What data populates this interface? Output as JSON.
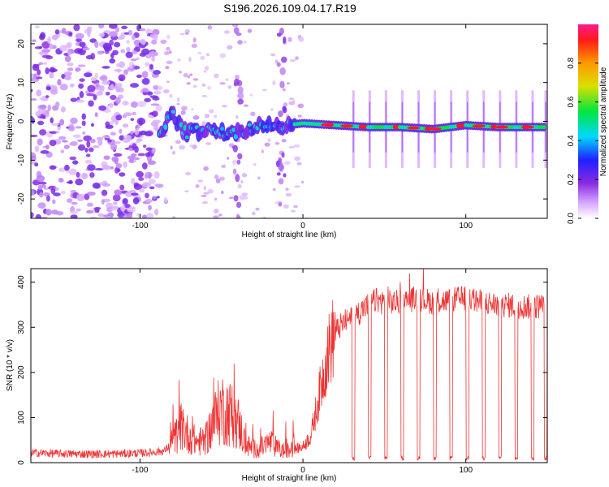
{
  "page_title": "S196.2026.109.04.17.R19",
  "chart_data": [
    {
      "type": "heatmap",
      "xlabel": "Height of straight line (km)",
      "ylabel": "Frequency (Hz)",
      "xlim": [
        -167,
        150
      ],
      "ylim": [
        -25,
        25
      ],
      "xticks": [
        -100,
        0,
        100
      ],
      "xtick_labels": [
        "-100",
        "0",
        "100"
      ],
      "yticks": [
        -20,
        -10,
        0,
        10,
        20
      ],
      "ytick_labels": [
        "-20",
        "-10",
        "0",
        "10",
        "20"
      ],
      "signal_track": [
        {
          "x": -88,
          "y": -4
        },
        {
          "x": -84,
          "y": 0
        },
        {
          "x": -80,
          "y": 2
        },
        {
          "x": -76,
          "y": -1
        },
        {
          "x": -72,
          "y": -3
        },
        {
          "x": -66,
          "y": -2
        },
        {
          "x": -60,
          "y": -3
        },
        {
          "x": -54,
          "y": -2
        },
        {
          "x": -48,
          "y": -3
        },
        {
          "x": -40,
          "y": -3
        },
        {
          "x": -32,
          "y": -2
        },
        {
          "x": -26,
          "y": 0
        },
        {
          "x": -20,
          "y": -1
        },
        {
          "x": -10,
          "y": -1
        },
        {
          "x": 0,
          "y": -0.5
        },
        {
          "x": 20,
          "y": -1
        },
        {
          "x": 40,
          "y": -1.5
        },
        {
          "x": 60,
          "y": -1.5
        },
        {
          "x": 80,
          "y": -2
        },
        {
          "x": 100,
          "y": -1
        },
        {
          "x": 120,
          "y": -1.5
        },
        {
          "x": 145,
          "y": -1.5
        }
      ],
      "colorbar": {
        "label": "Normalized spectral amplitude",
        "ticks": [
          0.0,
          0.2,
          0.4,
          0.6,
          0.8
        ],
        "tick_labels": [
          "0.0",
          "0.2",
          "0.4",
          "0.6",
          "0.8"
        ],
        "range": [
          0,
          1
        ]
      }
    },
    {
      "type": "line",
      "xlabel": "Height of straight line (km)",
      "ylabel": "SNR (10 * v/v)",
      "xlim": [
        -167,
        150
      ],
      "ylim": [
        0,
        430
      ],
      "xticks": [
        -100,
        0,
        100
      ],
      "xtick_labels": [
        "-100",
        "0",
        "100"
      ],
      "yticks": [
        0,
        100,
        200,
        300,
        400
      ],
      "ytick_labels": [
        "0",
        "100",
        "200",
        "300",
        "400"
      ],
      "line_color": "#ee3333",
      "series": [
        {
          "name": "SNR",
          "x": [
            -167,
            -150,
            -130,
            -110,
            -95,
            -85,
            -80,
            -75,
            -70,
            -65,
            -60,
            -55,
            -50,
            -45,
            -40,
            -35,
            -30,
            -25,
            -20,
            -15,
            -10,
            -5,
            0,
            5,
            10,
            15,
            18,
            20,
            25,
            30,
            35,
            40,
            45,
            50,
            60,
            70,
            80,
            90,
            100,
            110,
            120,
            130,
            140,
            150
          ],
          "y": [
            22,
            20,
            19,
            20,
            22,
            26,
            45,
            80,
            60,
            45,
            50,
            90,
            120,
            110,
            90,
            40,
            30,
            35,
            45,
            30,
            25,
            30,
            35,
            60,
            150,
            240,
            270,
            290,
            310,
            320,
            335,
            350,
            360,
            355,
            355,
            365,
            355,
            360,
            365,
            355,
            350,
            348,
            345,
            350
          ]
        }
      ],
      "dropouts_x": [
        31,
        41,
        51,
        61,
        71,
        81,
        91,
        101,
        111,
        121,
        131,
        141,
        149
      ]
    }
  ]
}
